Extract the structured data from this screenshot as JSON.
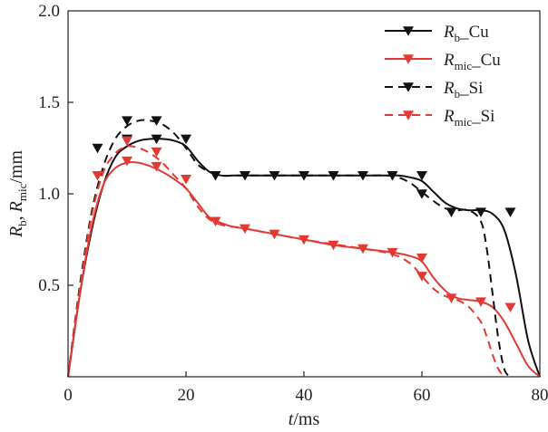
{
  "chart_data": {
    "type": "line",
    "title": "",
    "xlabel": {
      "var": "t",
      "unit": "/ms"
    },
    "ylabel": {
      "r_b": "R",
      "r_b_sub": "b",
      "sep": ",",
      "r_mic": "R",
      "r_mic_sub": "mic",
      "unit": "/mm"
    },
    "xlim": [
      0,
      80
    ],
    "ylim": [
      0,
      2.0
    ],
    "xticks": [
      0,
      20,
      40,
      60,
      80
    ],
    "xtick_labels": [
      "0",
      "20",
      "40",
      "60",
      "80"
    ],
    "yticks": [
      0.5,
      1.0,
      1.5,
      2.0
    ],
    "ytick_labels": [
      "0.5",
      "1.0",
      "1.5",
      "2.0"
    ],
    "grid": false,
    "legend_position": "top-right",
    "series": [
      {
        "name": "R_b_Cu",
        "label_main": "R",
        "label_sub": "b",
        "label_suffix": "_Cu",
        "color": "#111111",
        "dash": "solid",
        "marker": "triangle-down",
        "markers_x": [
          5,
          10,
          15,
          20,
          25,
          30,
          35,
          40,
          45,
          50,
          55,
          60,
          65,
          70,
          75
        ],
        "markers_y": [
          1.25,
          1.3,
          1.3,
          1.3,
          1.1,
          1.1,
          1.1,
          1.1,
          1.1,
          1.1,
          1.1,
          1.1,
          0.9,
          0.9,
          0.9
        ],
        "curve_x": [
          0,
          2,
          4,
          6,
          8,
          10,
          12,
          14,
          16,
          18,
          20,
          22,
          24,
          26,
          28,
          30,
          40,
          50,
          54,
          56,
          58,
          60,
          62,
          64,
          66,
          68,
          70,
          72,
          74,
          76,
          78,
          80
        ],
        "curve_y": [
          0,
          0.45,
          0.8,
          1.05,
          1.2,
          1.26,
          1.29,
          1.3,
          1.3,
          1.29,
          1.26,
          1.18,
          1.12,
          1.1,
          1.1,
          1.1,
          1.1,
          1.1,
          1.1,
          1.1,
          1.09,
          1.07,
          1.01,
          0.95,
          0.92,
          0.91,
          0.91,
          0.89,
          0.8,
          0.55,
          0.2,
          0
        ]
      },
      {
        "name": "R_mic_Cu",
        "label_main": "R",
        "label_sub": "mic",
        "label_suffix": "_Cu",
        "color": "#e23a32",
        "dash": "solid",
        "marker": "triangle-down",
        "markers_x": [
          5,
          10,
          15,
          20,
          25,
          30,
          35,
          40,
          45,
          50,
          55,
          60,
          65,
          70,
          75
        ],
        "markers_y": [
          1.1,
          1.18,
          1.15,
          1.08,
          0.85,
          0.81,
          0.78,
          0.75,
          0.72,
          0.7,
          0.68,
          0.65,
          0.43,
          0.41,
          0.38
        ],
        "curve_x": [
          0,
          2,
          4,
          6,
          8,
          10,
          12,
          14,
          16,
          18,
          20,
          22,
          24,
          26,
          28,
          30,
          35,
          40,
          45,
          50,
          55,
          58,
          60,
          62,
          64,
          66,
          68,
          70,
          72,
          74,
          76,
          78,
          80
        ],
        "curve_y": [
          0,
          0.45,
          0.82,
          1.05,
          1.14,
          1.17,
          1.17,
          1.15,
          1.12,
          1.08,
          1.03,
          0.95,
          0.87,
          0.84,
          0.82,
          0.81,
          0.78,
          0.75,
          0.72,
          0.7,
          0.68,
          0.66,
          0.63,
          0.54,
          0.47,
          0.43,
          0.42,
          0.41,
          0.38,
          0.3,
          0.18,
          0.06,
          0
        ]
      },
      {
        "name": "R_b_Si",
        "label_main": "R",
        "label_sub": "b",
        "label_suffix": "_Si",
        "color": "#111111",
        "dash": "dashed",
        "marker": "triangle-down",
        "markers_x": [
          10,
          15,
          60
        ],
        "markers_y": [
          1.4,
          1.4,
          1.0
        ],
        "curve_x": [
          0,
          2,
          4,
          6,
          8,
          10,
          12,
          14,
          16,
          18,
          20,
          22,
          24,
          26,
          28,
          30,
          40,
          50,
          54,
          56,
          58,
          60,
          62,
          64,
          66,
          68,
          70,
          71,
          72,
          73,
          74,
          75
        ],
        "curve_y": [
          0,
          0.5,
          0.9,
          1.15,
          1.3,
          1.37,
          1.4,
          1.4,
          1.38,
          1.33,
          1.25,
          1.16,
          1.12,
          1.1,
          1.1,
          1.1,
          1.1,
          1.1,
          1.1,
          1.09,
          1.06,
          1.01,
          0.96,
          0.92,
          0.91,
          0.91,
          0.85,
          0.7,
          0.45,
          0.2,
          0.04,
          0
        ]
      },
      {
        "name": "R_mic_Si",
        "label_main": "R",
        "label_sub": "mic",
        "label_suffix": "_Si",
        "color": "#e23a32",
        "dash": "dashed",
        "marker": "triangle-down",
        "markers_x": [
          10,
          15,
          60
        ],
        "markers_y": [
          1.29,
          1.23,
          0.55
        ],
        "curve_x": [
          0,
          2,
          4,
          6,
          8,
          10,
          12,
          14,
          16,
          18,
          20,
          22,
          24,
          26,
          28,
          30,
          40,
          50,
          55,
          58,
          60,
          62,
          64,
          66,
          68,
          70,
          71,
          72,
          73,
          74
        ],
        "curve_y": [
          0,
          0.48,
          0.88,
          1.12,
          1.22,
          1.26,
          1.25,
          1.22,
          1.17,
          1.1,
          1.03,
          0.93,
          0.86,
          0.83,
          0.82,
          0.81,
          0.75,
          0.7,
          0.67,
          0.62,
          0.55,
          0.48,
          0.44,
          0.42,
          0.38,
          0.3,
          0.22,
          0.12,
          0.04,
          0
        ]
      }
    ]
  }
}
